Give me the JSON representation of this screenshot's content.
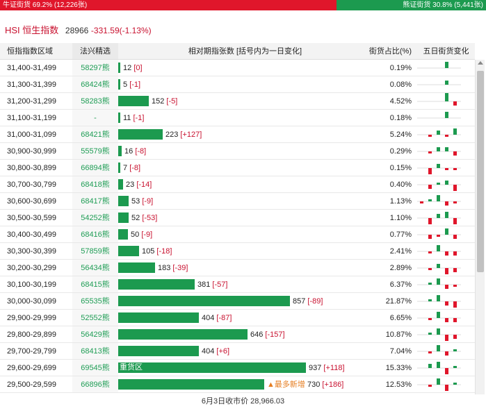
{
  "ratio": {
    "bull_label": "牛证街货 69.2% (12,226张)",
    "bear_label": "熊证街货 30.8% (5,441张)",
    "bull_pct": 69.2,
    "bull_color": "#e0162b",
    "bear_color": "#1c9a4f"
  },
  "header": {
    "title": "HSI 恒生指数",
    "price": "28966",
    "change": "-331.59(-1.13%)"
  },
  "columns": {
    "range": "恒指指数区域",
    "code": "法兴精选",
    "bar": "相对期指张数 [括号内为一日变化]",
    "pct": "街货占比(%)",
    "trend": "五日街货变化"
  },
  "max_contracts": 937,
  "rows": [
    {
      "range": "31,400-31,499",
      "code": "58297熊",
      "contracts": 12,
      "change": "[0]",
      "pct": "0.19%",
      "trend": [
        0,
        0,
        0,
        3,
        0
      ]
    },
    {
      "range": "31,300-31,399",
      "code": "68424熊",
      "contracts": 5,
      "change": "[-1]",
      "pct": "0.08%",
      "trend": [
        0,
        0,
        0,
        2,
        0
      ]
    },
    {
      "range": "31,200-31,299",
      "code": "58283熊",
      "contracts": 152,
      "change": "[-5]",
      "pct": "4.52%",
      "trend": [
        0,
        0,
        0,
        4,
        -2
      ]
    },
    {
      "range": "31,100-31,199",
      "code": "-",
      "contracts": 11,
      "change": "[-1]",
      "pct": "0.18%",
      "trend": [
        0,
        0,
        0,
        3,
        0
      ]
    },
    {
      "range": "31,000-31,099",
      "code": "68421熊",
      "contracts": 223,
      "change": "[+127]",
      "pct": "5.24%",
      "trend": [
        0,
        -1,
        2,
        -1,
        3
      ]
    },
    {
      "range": "30,900-30,999",
      "code": "55579熊",
      "contracts": 16,
      "change": "[-8]",
      "pct": "0.29%",
      "trend": [
        0,
        -1,
        2,
        2,
        -2
      ]
    },
    {
      "range": "30,800-30,899",
      "code": "66894熊",
      "contracts": 7,
      "change": "[-8]",
      "pct": "0.15%",
      "trend": [
        0,
        -3,
        2,
        -1,
        -1
      ]
    },
    {
      "range": "30,700-30,799",
      "code": "68418熊",
      "contracts": 23,
      "change": "[-14]",
      "pct": "0.40%",
      "trend": [
        0,
        -2,
        1,
        2,
        -3
      ]
    },
    {
      "range": "30,600-30,699",
      "code": "68417熊",
      "contracts": 53,
      "change": "[-9]",
      "pct": "1.13%",
      "trend": [
        -1,
        1,
        3,
        -2,
        -1
      ]
    },
    {
      "range": "30,500-30,599",
      "code": "54252熊",
      "contracts": 52,
      "change": "[-53]",
      "pct": "1.10%",
      "trend": [
        0,
        -3,
        2,
        3,
        -3
      ]
    },
    {
      "range": "30,400-30,499",
      "code": "68416熊",
      "contracts": 50,
      "change": "[-9]",
      "pct": "0.77%",
      "trend": [
        0,
        -2,
        -1,
        3,
        -2
      ]
    },
    {
      "range": "30,300-30,399",
      "code": "57859熊",
      "contracts": 105,
      "change": "[-18]",
      "pct": "2.41%",
      "trend": [
        0,
        -1,
        3,
        -2,
        -2
      ]
    },
    {
      "range": "30,200-30,299",
      "code": "56434熊",
      "contracts": 183,
      "change": "[-39]",
      "pct": "2.89%",
      "trend": [
        0,
        -1,
        2,
        -3,
        -2
      ]
    },
    {
      "range": "30,100-30,199",
      "code": "68415熊",
      "contracts": 381,
      "change": "[-57]",
      "pct": "6.37%",
      "trend": [
        0,
        1,
        3,
        -2,
        -1
      ]
    },
    {
      "range": "30,000-30,099",
      "code": "65535熊",
      "contracts": 857,
      "change": "[-89]",
      "pct": "21.87%",
      "trend": [
        0,
        1,
        3,
        -2,
        -3
      ]
    },
    {
      "range": "29,900-29,999",
      "code": "52552熊",
      "contracts": 404,
      "change": "[-87]",
      "pct": "6.65%",
      "trend": [
        0,
        -1,
        3,
        -2,
        -2
      ]
    },
    {
      "range": "29,800-29,899",
      "code": "56429熊",
      "contracts": 646,
      "change": "[-157]",
      "pct": "10.87%",
      "trend": [
        0,
        1,
        3,
        -3,
        -2
      ]
    },
    {
      "range": "29,700-29,799",
      "code": "68413熊",
      "contracts": 404,
      "change": "[+6]",
      "pct": "7.04%",
      "trend": [
        0,
        -1,
        3,
        -2,
        1
      ]
    },
    {
      "range": "29,600-29,699",
      "code": "69545熊",
      "contracts": 937,
      "change": "[+118]",
      "pct": "15.33%",
      "trend": [
        0,
        2,
        3,
        -3,
        1
      ],
      "inner_tag": "重货区"
    },
    {
      "range": "29,500-29,599",
      "code": "66896熊",
      "contracts": 730,
      "change": "[+186]",
      "pct": "12.53%",
      "trend": [
        0,
        -1,
        3,
        -3,
        1
      ],
      "side_tag": "▲最多新增"
    }
  ],
  "footer": "6月3日收市价 28,966.03",
  "colors": {
    "up": "#1c9a4f",
    "down": "#e0162b",
    "code": "#1f9d55"
  }
}
